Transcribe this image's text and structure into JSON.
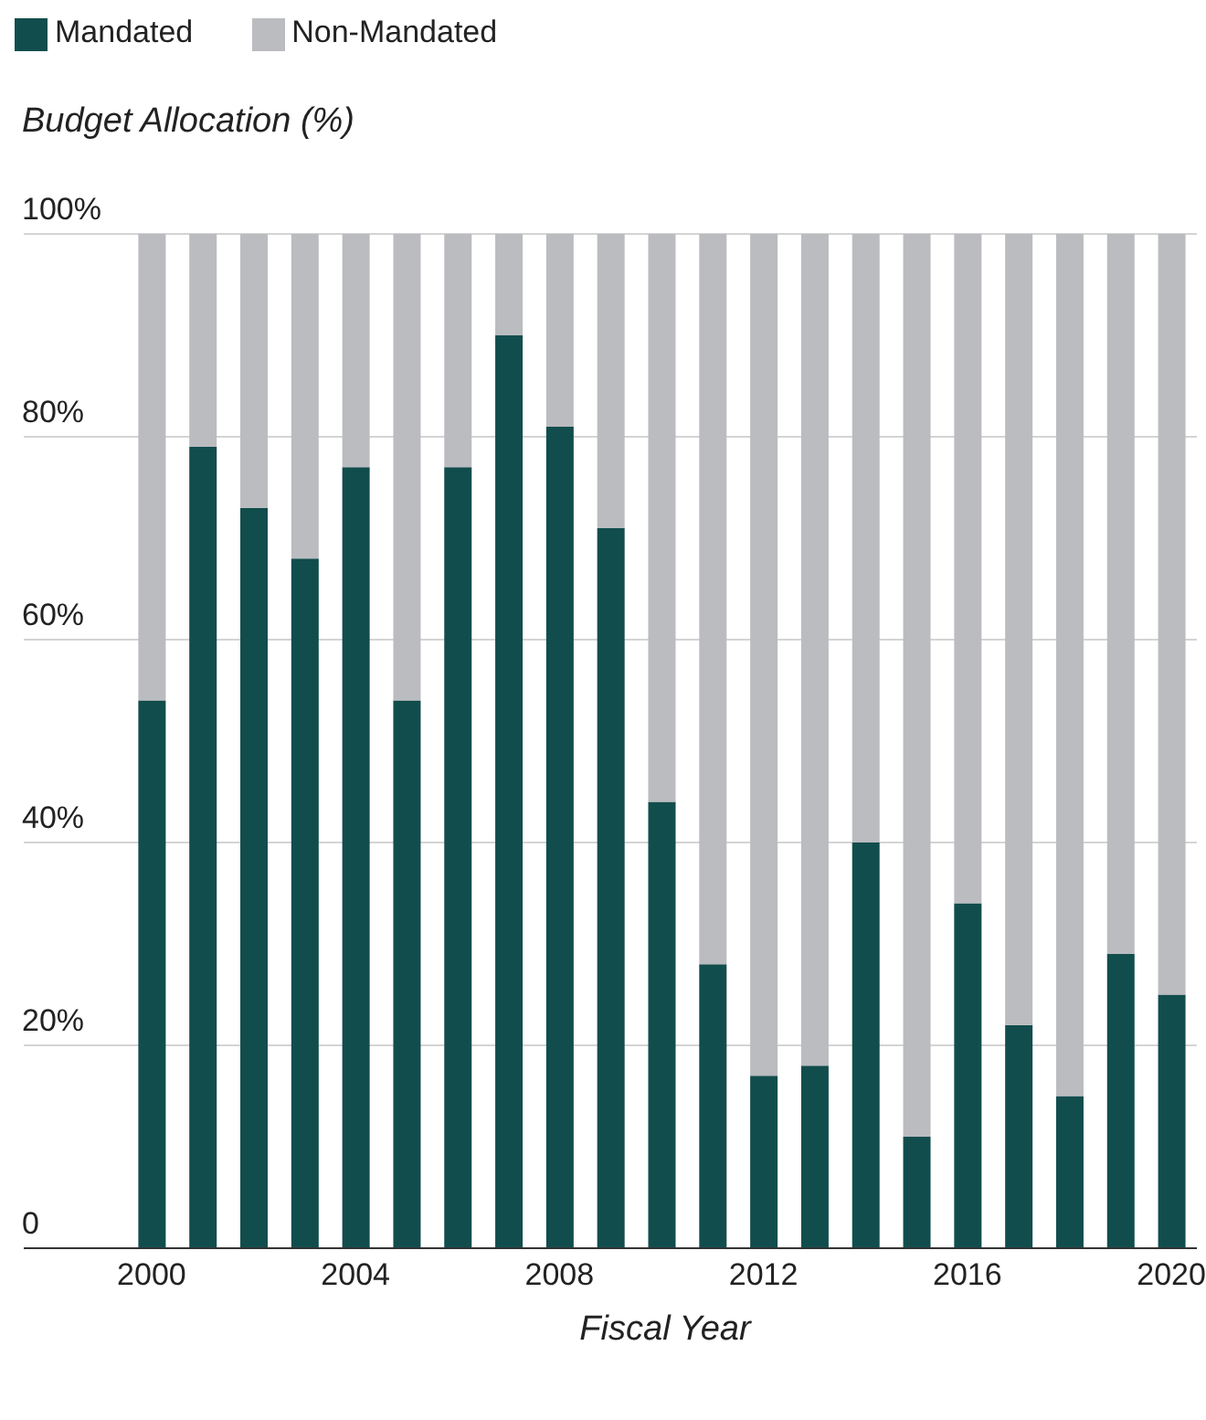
{
  "chart_data": {
    "type": "bar",
    "stacked": true,
    "ylabel": "Budget Allocation (%)",
    "xlabel": "Fiscal Year",
    "categories": [
      "2000",
      null,
      null,
      null,
      "2004",
      null,
      null,
      null,
      "2008",
      null,
      null,
      null,
      "2012",
      null,
      null,
      null,
      "2016",
      null,
      null,
      null,
      "2020"
    ],
    "series": [
      {
        "name": "Mandated",
        "color": "#124d4d",
        "values": [
          54,
          79,
          73,
          68,
          77,
          54,
          77,
          90,
          81,
          71,
          44,
          28,
          17,
          18,
          40,
          11,
          34,
          22,
          15,
          29,
          25
        ]
      },
      {
        "name": "Non-Mandated",
        "color": "#bbbcc0",
        "values": [
          46,
          21,
          27,
          32,
          23,
          46,
          23,
          10,
          19,
          29,
          56,
          72,
          83,
          82,
          60,
          89,
          66,
          78,
          85,
          71,
          75
        ]
      }
    ],
    "ylim": [
      0,
      100
    ],
    "yticks": [
      0,
      {
        "value": 20,
        "label": "20%"
      },
      {
        "value": 40,
        "label": "40%"
      },
      {
        "value": 60,
        "label": "60%"
      },
      {
        "value": 80,
        "label": "80%"
      },
      {
        "value": 100,
        "label": "100%"
      }
    ],
    "grid": "y",
    "legend": "top left"
  }
}
